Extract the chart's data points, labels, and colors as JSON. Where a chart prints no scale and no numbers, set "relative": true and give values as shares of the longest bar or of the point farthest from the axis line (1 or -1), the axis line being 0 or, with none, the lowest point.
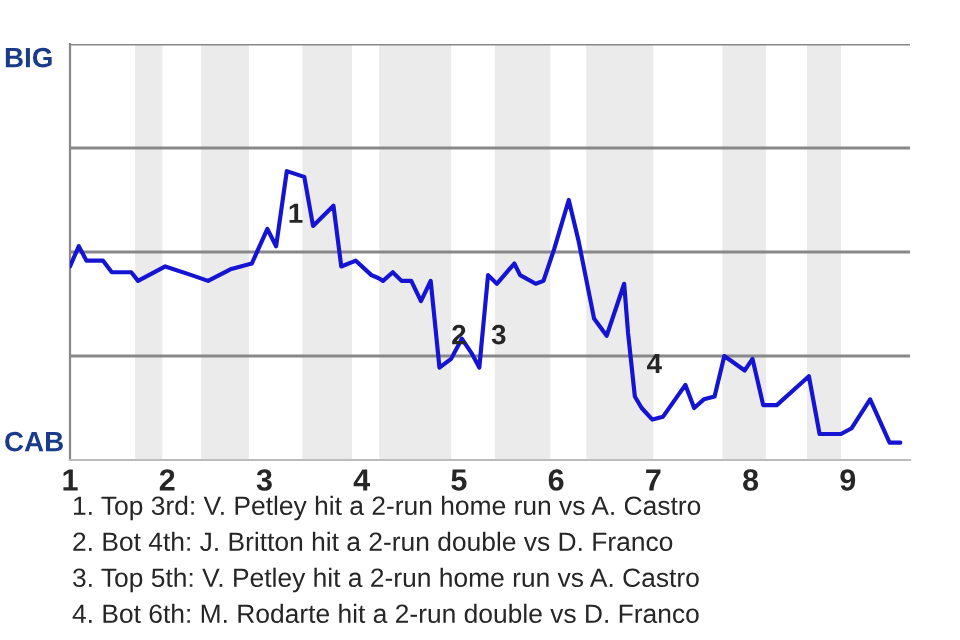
{
  "chart_data": {
    "type": "line",
    "relative": true,
    "x": [
      1.0,
      1.09,
      1.17,
      1.34,
      1.43,
      1.63,
      1.7,
      1.98,
      2.25,
      2.42,
      2.65,
      2.87,
      3.03,
      3.12,
      3.23,
      3.41,
      3.5,
      3.71,
      3.79,
      3.94,
      4.1,
      4.17,
      4.22,
      4.32,
      4.41,
      4.51,
      4.61,
      4.71,
      4.8,
      4.92,
      5.03,
      5.13,
      5.21,
      5.3,
      5.39,
      5.57,
      5.63,
      5.79,
      5.87,
      5.98,
      6.13,
      6.23,
      6.39,
      6.52,
      6.7,
      6.74,
      6.81,
      6.88,
      6.99,
      7.1,
      7.33,
      7.42,
      7.52,
      7.63,
      7.73,
      7.94,
      8.02,
      8.13,
      8.27,
      8.6,
      8.71,
      8.93,
      9.04,
      9.23,
      9.43,
      9.54
    ],
    "series": [
      {
        "color": "#1414d2",
        "values": [
          0.67,
          0.74,
          0.69,
          0.69,
          0.65,
          0.65,
          0.62,
          0.67,
          0.64,
          0.62,
          0.66,
          0.68,
          0.8,
          0.74,
          1,
          0.98,
          0.81,
          0.88,
          0.67,
          0.69,
          0.64,
          0.63,
          0.62,
          0.65,
          0.62,
          0.62,
          0.55,
          0.62,
          0.32,
          0.35,
          0.42,
          0.37,
          0.32,
          0.64,
          0.61,
          0.68,
          0.64,
          0.61,
          0.62,
          0.73,
          0.9,
          0.76,
          0.49,
          0.43,
          0.61,
          0.44,
          0.22,
          0.18,
          0.14,
          0.15,
          0.26,
          0.18,
          0.21,
          0.22,
          0.36,
          0.31,
          0.35,
          0.19,
          0.19,
          0.29,
          0.09,
          0.09,
          0.11,
          0.21,
          0.06,
          0.06
        ]
      }
    ],
    "xlim": [
      1,
      9.64
    ],
    "xticks": [
      1,
      2,
      3,
      4,
      5,
      6,
      7,
      8,
      9
    ],
    "marker": "none",
    "line_style": "solid",
    "ref_lines": [
      {
        "axis": "y",
        "value": 0.36,
        "color": "#888888"
      },
      {
        "axis": "y",
        "value": 0.72,
        "color": "#888888"
      },
      {
        "axis": "y",
        "value": 1.08,
        "color": "#888888"
      },
      {
        "axis": "y",
        "value": 1.44,
        "color": "#888888"
      }
    ],
    "bands": [
      {
        "axis": "x",
        "from": 1.67,
        "to": 1.95,
        "color": "#ebebeb"
      },
      {
        "axis": "x",
        "from": 2.35,
        "to": 2.84,
        "color": "#ebebeb"
      },
      {
        "axis": "x",
        "from": 3.39,
        "to": 3.9,
        "color": "#ebebeb"
      },
      {
        "axis": "x",
        "from": 4.18,
        "to": 4.92,
        "color": "#ebebeb"
      },
      {
        "axis": "x",
        "from": 5.37,
        "to": 5.94,
        "color": "#ebebeb"
      },
      {
        "axis": "x",
        "from": 6.31,
        "to": 7.0,
        "color": "#ebebeb"
      },
      {
        "axis": "x",
        "from": 7.71,
        "to": 8.16,
        "color": "#ebebeb"
      },
      {
        "axis": "x",
        "from": 8.58,
        "to": 8.93,
        "color": "#ebebeb"
      }
    ],
    "annotations": [
      "BIG",
      "CAB",
      {
        "text": "1",
        "x": 3.12,
        "y": 0.74
      },
      {
        "text": "2",
        "x": 4.8,
        "y": 0.32
      },
      {
        "text": "3",
        "x": 5.21,
        "y": 0.32
      },
      {
        "text": "4",
        "x": 6.81,
        "y": 0.22
      },
      "1. Top 3rd: V. Petley hit a 2-run home run vs A. Castro",
      "2. Bot 4th: J. Britton hit a 2-run double vs D. Franco",
      "3. Top 5th: V. Petley hit a 2-run home run vs A. Castro",
      "4. Bot 6th: M. Rodarte hit a 2-run double vs D. Franco"
    ]
  }
}
